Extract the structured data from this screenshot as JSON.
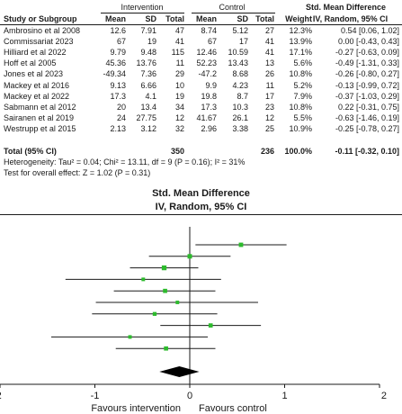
{
  "header": {
    "study_col": "Study or Subgroup",
    "group1": "Intervention",
    "group2": "Control",
    "effect_col": "Std. Mean Difference",
    "mean": "Mean",
    "sd": "SD",
    "total": "Total",
    "weight": "Weight",
    "method": "IV, Random, 95% CI"
  },
  "rows": [
    {
      "study": "Ambrosino et al 2008",
      "m1": "12.6",
      "sd1": "7.91",
      "n1": "47",
      "m2": "8.74",
      "sd2": "5.12",
      "n2": "27",
      "weight": "12.3%",
      "ci": "0.54 [0.06, 1.02]"
    },
    {
      "study": "Commissariat 2023",
      "m1": "67",
      "sd1": "19",
      "n1": "41",
      "m2": "67",
      "sd2": "17",
      "n2": "41",
      "weight": "13.9%",
      "ci": "0.00 [-0.43, 0.43]"
    },
    {
      "study": "Hilliard et al 2022",
      "m1": "9.79",
      "sd1": "9.48",
      "n1": "115",
      "m2": "12.46",
      "sd2": "10.59",
      "n2": "41",
      "weight": "17.1%",
      "ci": "-0.27 [-0.63, 0.09]"
    },
    {
      "study": "Hoff et al 2005",
      "m1": "45.36",
      "sd1": "13.76",
      "n1": "11",
      "m2": "52.23",
      "sd2": "13.43",
      "n2": "13",
      "weight": "5.6%",
      "ci": "-0.49 [-1.31, 0.33]"
    },
    {
      "study": "Jones et al 2023",
      "m1": "-49.34",
      "sd1": "7.36",
      "n1": "29",
      "m2": "-47.2",
      "sd2": "8.68",
      "n2": "26",
      "weight": "10.8%",
      "ci": "-0.26 [-0.80, 0.27]"
    },
    {
      "study": "Mackey et al 2016",
      "m1": "9.13",
      "sd1": "6.66",
      "n1": "10",
      "m2": "9.9",
      "sd2": "4.23",
      "n2": "11",
      "weight": "5.2%",
      "ci": "-0.13 [-0.99, 0.72]"
    },
    {
      "study": "Mackey et al 2022",
      "m1": "17.3",
      "sd1": "4.1",
      "n1": "19",
      "m2": "19.8",
      "sd2": "8.7",
      "n2": "17",
      "weight": "7.9%",
      "ci": "-0.37 [-1.03, 0.29]"
    },
    {
      "study": "Sabmann et al 2012",
      "m1": "20",
      "sd1": "13.4",
      "n1": "34",
      "m2": "17.3",
      "sd2": "10.3",
      "n2": "23",
      "weight": "10.8%",
      "ci": "0.22 [-0.31, 0.75]"
    },
    {
      "study": "Sairanen et al 2019",
      "m1": "24",
      "sd1": "27.75",
      "n1": "12",
      "m2": "41.67",
      "sd2": "26.1",
      "n2": "12",
      "weight": "5.5%",
      "ci": "-0.63 [-1.46, 0.19]"
    },
    {
      "study": "Westrupp et al 2015",
      "m1": "2.13",
      "sd1": "3.12",
      "n1": "32",
      "m2": "2.96",
      "sd2": "3.38",
      "n2": "25",
      "weight": "10.9%",
      "ci": "-0.25 [-0.78, 0.27]"
    }
  ],
  "total_row": {
    "label": "Total (95% CI)",
    "n1": "350",
    "n2": "236",
    "weight": "100.0%",
    "ci": "-0.11 [-0.32, 0.10]"
  },
  "heterogeneity": "Heterogeneity: Tau² = 0.04; Chi² = 13.11, df = 9 (P = 0.16); I² = 31%",
  "overall_test": "Test for overall effect: Z = 1.02 (P = 0.31)",
  "colors": {
    "square": "#2dbb2d",
    "diamond": "#000000",
    "line": "#1a1a1a"
  },
  "chart_data": {
    "type": "forest",
    "title": "Std. Mean Difference",
    "subtitle": "IV, Random, 95% CI",
    "xlim": [
      -2,
      2
    ],
    "ticks": [
      -2,
      -1,
      0,
      1,
      2
    ],
    "tick_labels": [
      "-2",
      "-1",
      "0",
      "1",
      "2"
    ],
    "left_label": "Favours intervention",
    "right_label": "Favours control",
    "studies": [
      {
        "name": "Ambrosino et al 2008",
        "smd": 0.54,
        "lo": 0.06,
        "hi": 1.02,
        "weight": 12.3
      },
      {
        "name": "Commissariat 2023",
        "smd": 0.0,
        "lo": -0.43,
        "hi": 0.43,
        "weight": 13.9
      },
      {
        "name": "Hilliard et al 2022",
        "smd": -0.27,
        "lo": -0.63,
        "hi": 0.09,
        "weight": 17.1
      },
      {
        "name": "Hoff et al 2005",
        "smd": -0.49,
        "lo": -1.31,
        "hi": 0.33,
        "weight": 5.6
      },
      {
        "name": "Jones et al 2023",
        "smd": -0.26,
        "lo": -0.8,
        "hi": 0.27,
        "weight": 10.8
      },
      {
        "name": "Mackey et al 2016",
        "smd": -0.13,
        "lo": -0.99,
        "hi": 0.72,
        "weight": 5.2
      },
      {
        "name": "Mackey et al 2022",
        "smd": -0.37,
        "lo": -1.03,
        "hi": 0.29,
        "weight": 7.9
      },
      {
        "name": "Sabmann et al 2012",
        "smd": 0.22,
        "lo": -0.31,
        "hi": 0.75,
        "weight": 10.8
      },
      {
        "name": "Sairanen et al 2019",
        "smd": -0.63,
        "lo": -1.46,
        "hi": 0.19,
        "weight": 5.5
      },
      {
        "name": "Westrupp et al 2015",
        "smd": -0.25,
        "lo": -0.78,
        "hi": 0.27,
        "weight": 10.9
      }
    ],
    "pooled": {
      "smd": -0.11,
      "lo": -0.32,
      "hi": 0.1
    }
  }
}
